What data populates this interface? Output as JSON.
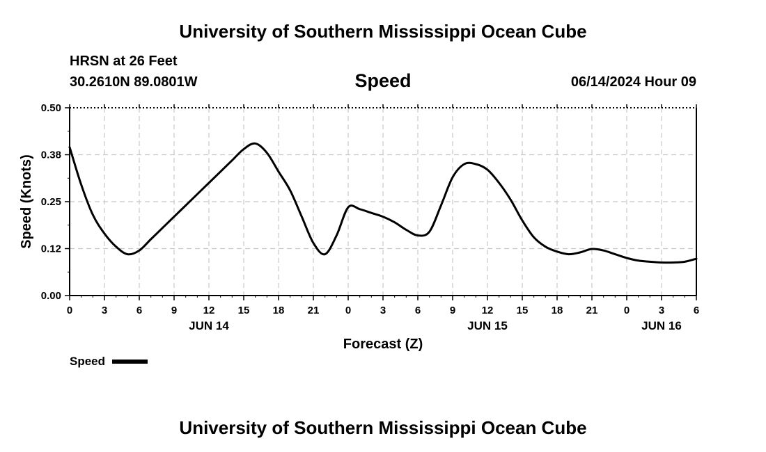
{
  "header": {
    "title": "University of Southern Mississippi Ocean Cube",
    "station": "HRSN at 26 Feet",
    "coordinates": "30.2610N  89.0801W",
    "chart_title": "Speed",
    "datetime": "06/14/2024 Hour 09"
  },
  "footer": {
    "title": "University of Southern Mississippi Ocean Cube"
  },
  "legend": {
    "label": "Speed"
  },
  "colors": {
    "line": "#000000",
    "grid": "#c8c8c8"
  },
  "chart_data": {
    "type": "line",
    "title": "Speed",
    "xlabel": "Forecast (Z)",
    "ylabel": "Speed (Knots)",
    "ylim": [
      0.0,
      0.5
    ],
    "xlim": [
      0,
      54
    ],
    "x_unit": "hours from 06/14/2024 00Z",
    "x_tick_values": [
      0,
      3,
      6,
      9,
      12,
      15,
      18,
      21,
      24,
      27,
      30,
      33,
      36,
      39,
      42,
      45,
      48,
      51,
      54
    ],
    "x_tick_labels": [
      "0",
      "3",
      "6",
      "9",
      "12",
      "15",
      "18",
      "21",
      "0",
      "3",
      "6",
      "9",
      "12",
      "15",
      "18",
      "21",
      "0",
      "3",
      "6"
    ],
    "date_labels": [
      {
        "x": 12,
        "label": "JUN 14"
      },
      {
        "x": 36,
        "label": "JUN 15"
      },
      {
        "x": 51,
        "label": "JUN 16"
      }
    ],
    "y_tick_values": [
      0.0,
      0.125,
      0.25,
      0.375,
      0.5
    ],
    "y_tick_labels": [
      "0.00",
      "0.12",
      "0.25",
      "0.38",
      "0.50"
    ],
    "grid": true,
    "legend_position": "bottom-left",
    "series": [
      {
        "name": "Speed",
        "x": [
          0,
          1,
          2,
          3,
          4,
          5,
          6,
          7,
          8,
          9,
          10,
          11,
          12,
          13,
          14,
          15,
          16,
          17,
          18,
          19,
          20,
          21,
          22,
          23,
          24,
          25,
          26,
          27,
          28,
          29,
          30,
          31,
          32,
          33,
          34,
          35,
          36,
          37,
          38,
          39,
          40,
          41,
          42,
          43,
          44,
          45,
          46,
          47,
          48,
          49,
          50,
          51,
          52,
          53,
          54
        ],
        "values": [
          0.395,
          0.295,
          0.215,
          0.165,
          0.13,
          0.11,
          0.12,
          0.15,
          0.18,
          0.21,
          0.24,
          0.27,
          0.3,
          0.33,
          0.36,
          0.39,
          0.405,
          0.38,
          0.33,
          0.28,
          0.21,
          0.14,
          0.11,
          0.16,
          0.235,
          0.23,
          0.22,
          0.21,
          0.195,
          0.175,
          0.16,
          0.17,
          0.24,
          0.315,
          0.35,
          0.35,
          0.335,
          0.3,
          0.255,
          0.2,
          0.155,
          0.13,
          0.117,
          0.11,
          0.115,
          0.124,
          0.12,
          0.11,
          0.1,
          0.093,
          0.09,
          0.088,
          0.088,
          0.09,
          0.098
        ]
      }
    ]
  }
}
